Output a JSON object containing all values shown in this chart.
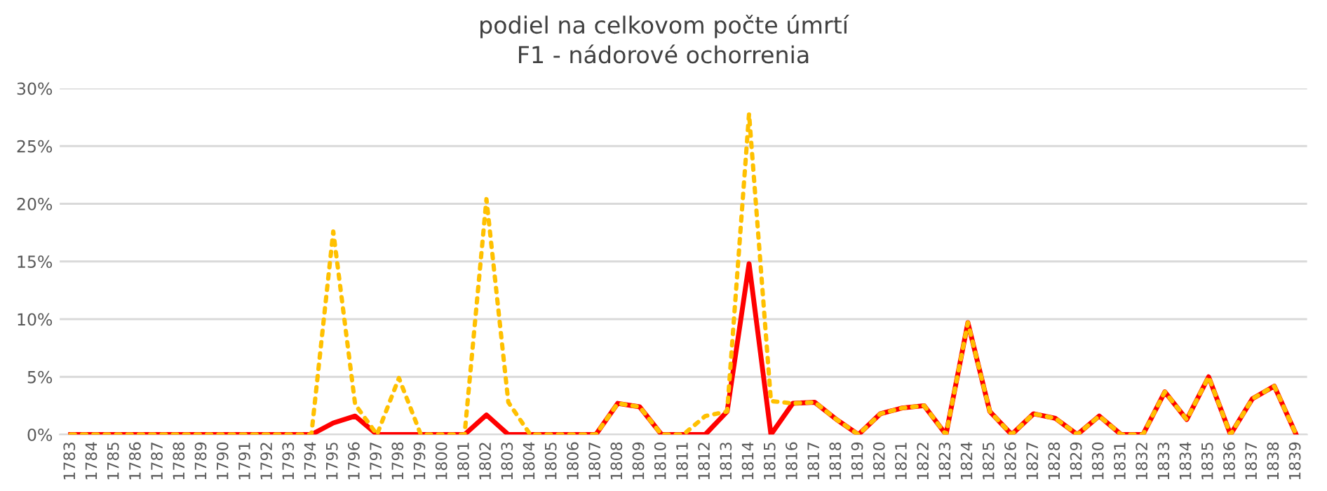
{
  "chart_data": {
    "type": "line",
    "title": "podiel na celkovom počte úmrtí\nF1 - nádorové ochorrenia",
    "categories": [
      "1783",
      "1784",
      "1785",
      "1786",
      "1787",
      "1788",
      "1789",
      "1790",
      "1791",
      "1792",
      "1793",
      "1794",
      "1795",
      "1796",
      "1797",
      "1798",
      "1799",
      "1800",
      "1801",
      "1802",
      "1803",
      "1804",
      "1805",
      "1806",
      "1807",
      "1808",
      "1809",
      "1810",
      "1811",
      "1812",
      "1813",
      "1814",
      "1815",
      "1816",
      "1817",
      "1818",
      "1819",
      "1820",
      "1821",
      "1822",
      "1823",
      "1824",
      "1825",
      "1826",
      "1827",
      "1828",
      "1829",
      "1830",
      "1831",
      "1832",
      "1833",
      "1834",
      "1835",
      "1836",
      "1837",
      "1838",
      "1839"
    ],
    "series": [
      {
        "color": "#ff0000",
        "line_style": "solid",
        "values": [
          0,
          0,
          0,
          0,
          0,
          0,
          0,
          0,
          0,
          0,
          0,
          0,
          1.0,
          1.6,
          0,
          0,
          0,
          0,
          0,
          1.7,
          0,
          0,
          0,
          0,
          0,
          2.7,
          2.4,
          0,
          0,
          0,
          2.0,
          14.8,
          0,
          2.7,
          2.8,
          1.3,
          0,
          1.8,
          2.3,
          2.5,
          0,
          9.7,
          2.0,
          0,
          1.8,
          1.4,
          0,
          1.6,
          0,
          0,
          3.7,
          1.3,
          5.0,
          0,
          3.1,
          4.2,
          0
        ]
      },
      {
        "color": "#ffc000",
        "line_style": "dotted",
        "values": [
          0,
          0,
          0,
          0,
          0,
          0,
          0,
          0,
          0,
          0,
          0,
          0,
          17.6,
          2.6,
          0,
          4.9,
          0,
          0,
          0,
          20.4,
          2.8,
          0,
          0,
          0,
          0,
          2.7,
          2.4,
          0,
          0,
          1.6,
          2.0,
          27.8,
          2.9,
          2.7,
          2.8,
          1.3,
          0,
          1.8,
          2.3,
          2.5,
          0,
          9.7,
          2.0,
          0,
          1.8,
          1.4,
          0,
          1.6,
          0,
          0,
          3.7,
          1.3,
          5.0,
          0,
          3.1,
          4.2,
          0
        ]
      }
    ],
    "ylim": [
      0,
      30
    ],
    "yticks": [
      {
        "value": 0,
        "label": "0%"
      },
      {
        "value": 5,
        "label": "5%"
      },
      {
        "value": 10,
        "label": "10%"
      },
      {
        "value": 15,
        "label": "15%"
      },
      {
        "value": 20,
        "label": "20%"
      },
      {
        "value": 25,
        "label": "25%"
      },
      {
        "value": 30,
        "label": "30%"
      }
    ],
    "grid": "y",
    "legend": false,
    "marker": "none"
  }
}
